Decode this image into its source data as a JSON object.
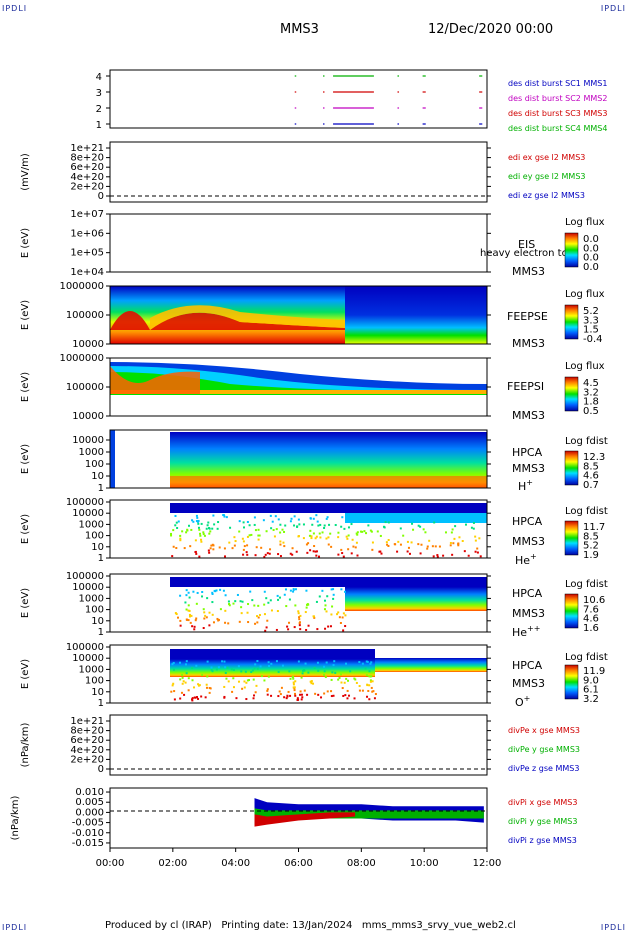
{
  "corners": {
    "tl": "IPDLI",
    "tr": "IPDLI",
    "bl": "IPDLI",
    "br": "IPDLI"
  },
  "header": {
    "spacecraft": "MMS3",
    "date": "12/Dec/2020 00:00"
  },
  "footer": {
    "text": "Produced by cl (IRAP)   Printing date: 13/Jan/2024   mms_mms3_srvy_vue_web2.cl"
  },
  "colors": {
    "red": "#d00000",
    "green": "#00b000",
    "blue": "#0000c0",
    "magenta": "#c000c0"
  },
  "chart_data": [
    {
      "type": "line",
      "id": "burst",
      "ylabels": [
        "4",
        "3",
        "2",
        "1"
      ],
      "legend": [
        {
          "text": "des dist burst SC1 MMS1",
          "color": "#0000c0"
        },
        {
          "text": "des dist burst SC2 MMS2",
          "color": "#c000c0"
        },
        {
          "text": "des dist burst SC3 MMS3",
          "color": "#d00000"
        },
        {
          "text": "des dist burst SC4 MMS4",
          "color": "#00b000"
        }
      ],
      "series": [
        {
          "name": "des dist burst SC4 MMS4",
          "level": 4,
          "color": "#00b000",
          "segments": [
            [
              5.88,
              5.9
            ],
            [
              6.78,
              6.82
            ],
            [
              7.1,
              8.4
            ],
            [
              9.15,
              9.2
            ],
            [
              9.95,
              10.05
            ],
            [
              11.75,
              11.85
            ]
          ]
        },
        {
          "name": "des dist burst SC3 MMS3",
          "level": 3,
          "color": "#d00000",
          "segments": [
            [
              5.88,
              5.9
            ],
            [
              6.78,
              6.82
            ],
            [
              7.1,
              8.4
            ],
            [
              9.15,
              9.2
            ],
            [
              9.95,
              10.05
            ],
            [
              11.75,
              11.85
            ]
          ]
        },
        {
          "name": "des dist burst SC2 MMS2",
          "level": 2,
          "color": "#c000c0",
          "segments": [
            [
              5.88,
              5.9
            ],
            [
              6.78,
              6.82
            ],
            [
              7.1,
              8.4
            ],
            [
              9.15,
              9.2
            ],
            [
              9.95,
              10.05
            ],
            [
              11.75,
              11.85
            ]
          ]
        },
        {
          "name": "des dist burst SC1 MMS1",
          "level": 1,
          "color": "#0000c0",
          "segments": [
            [
              5.88,
              5.9
            ],
            [
              6.78,
              6.82
            ],
            [
              7.1,
              8.4
            ],
            [
              9.15,
              9.2
            ],
            [
              9.95,
              10.05
            ],
            [
              11.75,
              11.85
            ]
          ]
        }
      ]
    },
    {
      "type": "line",
      "id": "edi",
      "ylabel": "(mV/m)",
      "yticks": [
        "1e+21",
        "8e+20",
        "6e+20",
        "4e+20",
        "2e+20",
        "0"
      ],
      "legend": [
        {
          "text": "edi ex gse l2 MMS3",
          "color": "#d00000"
        },
        {
          "text": "edi ey gse l2 MMS3",
          "color": "#00b000"
        },
        {
          "text": "edi ez gse l2 MMS3",
          "color": "#0000c0"
        }
      ]
    },
    {
      "type": "heatmap",
      "id": "eis",
      "ylabel": "E (eV)",
      "yticks": [
        "1e+07",
        "1e+06",
        "1e+05",
        "1e+04"
      ],
      "inst": "EIS",
      "sc": "MMS3",
      "extra": "heavy electron to",
      "cb_title": "Log flux",
      "cb_ticks": [
        "0.0",
        "0.0",
        "0.0",
        "0.0"
      ]
    },
    {
      "type": "heatmap",
      "id": "feepse",
      "ylabel": "E (eV)",
      "yticks": [
        "1000000",
        "100000",
        "10000"
      ],
      "inst": "FEEPSE",
      "sc": "MMS3",
      "cb_title": "Log flux",
      "cb_ticks": [
        "5.2",
        "3.3",
        "1.5",
        "-0.4"
      ]
    },
    {
      "type": "heatmap",
      "id": "feepsi",
      "ylabel": "E (eV)",
      "yticks": [
        "1000000",
        "100000",
        "10000"
      ],
      "inst": "FEEPSI",
      "sc": "MMS3",
      "cb_title": "Log flux",
      "cb_ticks": [
        "4.5",
        "3.2",
        "1.8",
        "0.5"
      ]
    },
    {
      "type": "heatmap",
      "id": "hpca_h",
      "ylabel": "E (eV)",
      "yticks": [
        "10000",
        "1000",
        "100",
        "10",
        "1"
      ],
      "inst": "HPCA",
      "sc": "MMS3",
      "species": "H",
      "charge": "+",
      "cb_title": "Log fdist",
      "cb_ticks": [
        "12.3",
        "8.5",
        "4.6",
        "0.7"
      ]
    },
    {
      "type": "heatmap",
      "id": "hpca_he",
      "ylabel": "E (eV)",
      "yticks": [
        "100000",
        "10000",
        "1000",
        "100",
        "10",
        "1"
      ],
      "inst": "HPCA",
      "sc": "MMS3",
      "species": "He",
      "charge": "+",
      "cb_title": "Log fdist",
      "cb_ticks": [
        "11.7",
        "8.5",
        "5.2",
        "1.9"
      ]
    },
    {
      "type": "heatmap",
      "id": "hpca_hepp",
      "ylabel": "E (eV)",
      "yticks": [
        "100000",
        "10000",
        "1000",
        "100",
        "10",
        "1"
      ],
      "inst": "HPCA",
      "sc": "MMS3",
      "species": "He",
      "charge": "++",
      "cb_title": "Log fdist",
      "cb_ticks": [
        "10.6",
        "7.6",
        "4.6",
        "1.6"
      ]
    },
    {
      "type": "heatmap",
      "id": "hpca_o",
      "ylabel": "E (eV)",
      "yticks": [
        "100000",
        "10000",
        "1000",
        "100",
        "10",
        "1"
      ],
      "inst": "HPCA",
      "sc": "MMS3",
      "species": "O",
      "charge": "+",
      "cb_title": "Log fdist",
      "cb_ticks": [
        "11.9",
        "9.0",
        "6.1",
        "3.2"
      ]
    },
    {
      "type": "line",
      "id": "divpe",
      "ylabel": "(nPa/km)",
      "yticks": [
        "1e+21",
        "8e+20",
        "6e+20",
        "4e+20",
        "2e+20",
        "0"
      ],
      "legend": [
        {
          "text": "divPe x gse MMS3",
          "color": "#d00000"
        },
        {
          "text": "divPe y gse MMS3",
          "color": "#00b000"
        },
        {
          "text": "divPe z gse MMS3",
          "color": "#0000c0"
        }
      ]
    },
    {
      "type": "line",
      "id": "divpi",
      "ylabel": "(nPa/km)",
      "yticks": [
        "0.010",
        "0.005",
        "0.000",
        "-0.005",
        "-0.010",
        "-0.015"
      ],
      "ylim": [
        -0.0165,
        0.011
      ],
      "legend": [
        {
          "text": "divPi x gse MMS3",
          "color": "#d00000"
        },
        {
          "text": "divPi y gse MMS3",
          "color": "#00b000"
        },
        {
          "text": "divPi z gse MMS3",
          "color": "#0000c0"
        }
      ],
      "series": [
        {
          "name": "divPi z gse MMS3",
          "color": "#0000c0",
          "envelope": [
            [
              4.6,
              -0.001,
              0.007
            ],
            [
              5.0,
              -0.002,
              0.005
            ],
            [
              6.0,
              -0.002,
              0.004
            ],
            [
              7.0,
              -0.002,
              0.004
            ],
            [
              8.0,
              -0.003,
              0.004
            ],
            [
              9.0,
              -0.004,
              0.003
            ],
            [
              10.0,
              -0.004,
              0.003
            ],
            [
              11.0,
              -0.004,
              0.003
            ],
            [
              11.9,
              -0.005,
              0.003
            ]
          ]
        },
        {
          "name": "divPi y gse MMS3",
          "color": "#00b000",
          "envelope": [
            [
              4.6,
              -0.006,
              0.002
            ],
            [
              5.0,
              -0.004,
              0.001
            ],
            [
              6.0,
              -0.003,
              0.001
            ],
            [
              7.0,
              -0.003,
              0.001
            ],
            [
              8.0,
              -0.003,
              0.001
            ],
            [
              9.0,
              -0.003,
              0.001
            ],
            [
              10.0,
              -0.003,
              0.001
            ],
            [
              11.0,
              -0.003,
              0.001
            ],
            [
              11.9,
              -0.003,
              0.001
            ]
          ]
        },
        {
          "name": "divPi x gse MMS3",
          "color": "#d00000",
          "envelope": [
            [
              4.6,
              -0.007,
              -0.001
            ],
            [
              5.0,
              -0.006,
              -0.002
            ],
            [
              6.0,
              -0.004,
              -0.001
            ],
            [
              7.0,
              -0.003,
              0.0
            ],
            [
              7.8,
              -0.002,
              0.0
            ]
          ]
        }
      ]
    }
  ],
  "xaxis": {
    "ticks": [
      "00:00",
      "02:00",
      "04:00",
      "06:00",
      "08:00",
      "10:00",
      "12:00"
    ],
    "range_hours": [
      0,
      12
    ]
  }
}
